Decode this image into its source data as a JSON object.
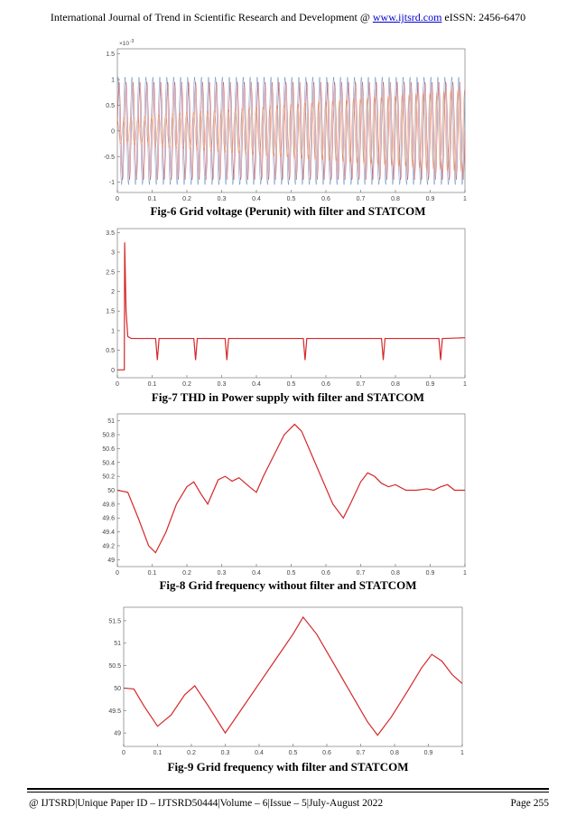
{
  "header": {
    "journal_prefix": "International Journal of Trend in Scientific Research and Development @ ",
    "website": "www.ijtsrd.com",
    "issn": " eISSN: 2456-6470"
  },
  "figures": [
    {
      "caption": "Fig-6 Grid voltage (Perunit) with filter and STATCOM"
    },
    {
      "caption": "Fig-7 THD in Power supply with filter and STATCOM"
    },
    {
      "caption": "Fig-8 Grid frequency without filter and STATCOM"
    },
    {
      "caption": "Fig-9 Grid frequency with filter and STATCOM"
    }
  ],
  "footer": {
    "journal": "@ IJTSRD",
    "paper_id": "Unique Paper ID – IJTSRD50444",
    "volume": "Volume – 6",
    "issue": "Issue – 5",
    "date": "July-August 2022",
    "page": "Page 255"
  },
  "colors": {
    "trace_red": "#d62728",
    "trace_blue": "#4a78b8",
    "trace_orange": "#ff7f2a",
    "axis": "#666666"
  },
  "chart_data": [
    {
      "type": "line",
      "x_ticks": [
        "0",
        "0.1",
        "0.2",
        "0.3",
        "0.4",
        "0.5",
        "0.6",
        "0.7",
        "0.8",
        "0.9",
        "1"
      ],
      "y_ticks": [
        "-1",
        "-0.5",
        "0",
        "0.5",
        "1",
        "1.5"
      ],
      "y_exponent": "×10",
      "y_exponent_power": "-3",
      "xlim": [
        0,
        1
      ],
      "ylim": [
        -1.2,
        1.6
      ],
      "series": [
        {
          "color": "#d62728",
          "amplitude": 0.95,
          "cycles": 50
        },
        {
          "color": "#4a78b8",
          "amplitude": 1.05,
          "cycles": 50
        },
        {
          "color": "#ff7f2a",
          "amplitude": 0.8,
          "cycles": 50
        }
      ]
    },
    {
      "type": "line",
      "x_ticks": [
        "0",
        "0.1",
        "0.2",
        "0.3",
        "0.4",
        "0.5",
        "0.6",
        "0.7",
        "0.8",
        "0.9",
        "1"
      ],
      "y_ticks": [
        "0",
        "0.5",
        "1",
        "1.5",
        "2",
        "2.5",
        "3",
        "3.5"
      ],
      "xlim": [
        0,
        1
      ],
      "ylim": [
        -0.2,
        3.6
      ],
      "series": [
        {
          "color": "#d62728",
          "x": [
            0,
            0.02,
            0.021,
            0.025,
            0.03,
            0.04,
            0.11,
            0.115,
            0.12,
            0.125,
            0.22,
            0.225,
            0.23,
            0.235,
            0.31,
            0.315,
            0.32,
            0.325,
            0.535,
            0.54,
            0.545,
            0.55,
            0.76,
            0.765,
            0.77,
            0.775,
            0.925,
            0.93,
            0.935,
            0.94,
            1
          ],
          "y": [
            0,
            0,
            3.25,
            1.5,
            0.85,
            0.8,
            0.8,
            0.25,
            0.8,
            0.8,
            0.8,
            0.25,
            0.8,
            0.8,
            0.8,
            0.25,
            0.8,
            0.8,
            0.8,
            0.25,
            0.8,
            0.8,
            0.8,
            0.25,
            0.8,
            0.8,
            0.8,
            0.25,
            0.8,
            0.8,
            0.82
          ]
        }
      ]
    },
    {
      "type": "line",
      "x_ticks": [
        "0",
        "0.1",
        "0.2",
        "0.3",
        "0.4",
        "0.5",
        "0.6",
        "0.7",
        "0.8",
        "0.9",
        "1"
      ],
      "y_ticks": [
        "49",
        "49.2",
        "49.4",
        "49.6",
        "49.8",
        "50",
        "50.2",
        "50.4",
        "50.6",
        "50.8",
        "51"
      ],
      "xlim": [
        0,
        1
      ],
      "ylim": [
        48.9,
        51.1
      ],
      "series": [
        {
          "color": "#d62728",
          "x": [
            0,
            0.03,
            0.06,
            0.09,
            0.11,
            0.14,
            0.17,
            0.2,
            0.22,
            0.24,
            0.26,
            0.29,
            0.31,
            0.33,
            0.35,
            0.38,
            0.4,
            0.42,
            0.45,
            0.48,
            0.51,
            0.53,
            0.56,
            0.59,
            0.62,
            0.65,
            0.67,
            0.7,
            0.72,
            0.74,
            0.76,
            0.78,
            0.8,
            0.83,
            0.86,
            0.89,
            0.91,
            0.93,
            0.95,
            0.97,
            1
          ],
          "y": [
            50,
            49.97,
            49.6,
            49.2,
            49.1,
            49.4,
            49.8,
            50.05,
            50.12,
            49.95,
            49.8,
            50.15,
            50.2,
            50.13,
            50.18,
            50.05,
            49.97,
            50.2,
            50.5,
            50.8,
            50.95,
            50.85,
            50.5,
            50.15,
            49.8,
            49.6,
            49.8,
            50.12,
            50.25,
            50.2,
            50.1,
            50.05,
            50.08,
            50.0,
            50.0,
            50.02,
            50.0,
            50.05,
            50.08,
            50.0,
            50.0
          ]
        }
      ]
    },
    {
      "type": "line",
      "x_ticks": [
        "0",
        "0.1",
        "0.2",
        "0.3",
        "0.4",
        "0.5",
        "0.6",
        "0.7",
        "0.8",
        "0.9",
        "1"
      ],
      "y_ticks": [
        "49",
        "49.5",
        "50",
        "50.5",
        "51",
        "51.5"
      ],
      "xlim": [
        0,
        1
      ],
      "ylim": [
        48.7,
        51.8
      ],
      "series": [
        {
          "color": "#d62728",
          "x": [
            0,
            0.03,
            0.06,
            0.1,
            0.14,
            0.18,
            0.21,
            0.25,
            0.3,
            0.35,
            0.4,
            0.45,
            0.5,
            0.53,
            0.57,
            0.62,
            0.67,
            0.72,
            0.75,
            0.79,
            0.84,
            0.88,
            0.91,
            0.94,
            0.97,
            1
          ],
          "y": [
            50,
            49.98,
            49.6,
            49.15,
            49.4,
            49.85,
            50.05,
            49.6,
            49.0,
            49.55,
            50.1,
            50.65,
            51.2,
            51.58,
            51.2,
            50.55,
            49.9,
            49.25,
            48.95,
            49.35,
            49.95,
            50.45,
            50.75,
            50.6,
            50.3,
            50.1
          ]
        }
      ]
    }
  ]
}
